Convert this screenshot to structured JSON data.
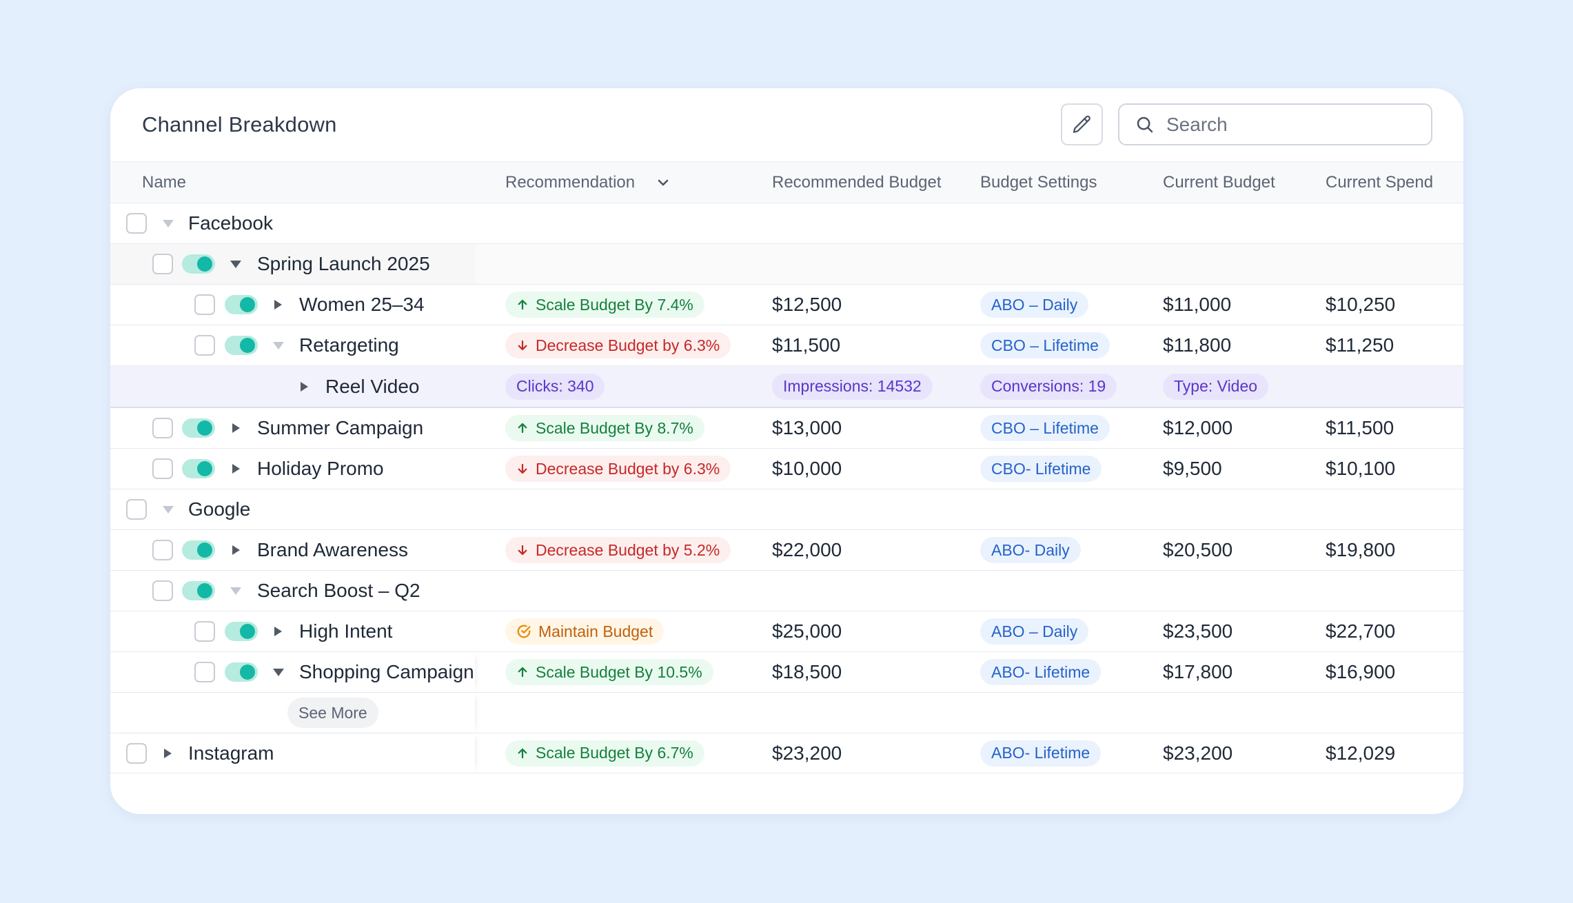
{
  "header": {
    "title": "Channel Breakdown",
    "search_placeholder": "Search"
  },
  "columns": {
    "name": "Name",
    "recommendation": "Recommendation",
    "recommended_budget": "Recommended Budget",
    "budget_settings": "Budget Settings",
    "current_budget": "Current Budget",
    "current_spend": "Current Spend"
  },
  "rows": [
    {
      "name": "Facebook"
    },
    {
      "name": "Spring Launch 2025"
    },
    {
      "name": "Women 25–34",
      "recommendation": "Scale Budget By 7.4%",
      "recommended_budget": "$12,500",
      "budget_settings": "ABO – Daily",
      "current_budget": "$11,000",
      "current_spend": "$10,250"
    },
    {
      "name": "Retargeting",
      "recommendation": "Decrease Budget by 6.3%",
      "recommended_budget": "$11,500",
      "budget_settings": "CBO – Lifetime",
      "current_budget": "$11,800",
      "current_spend": "$11,250"
    },
    {
      "name": "Reel Video",
      "clicks": "Clicks: 340",
      "impressions": "Impressions: 14532",
      "conversions": "Conversions: 19",
      "type": "Type: Video"
    },
    {
      "name": "Summer Campaign",
      "recommendation": "Scale Budget By 8.7%",
      "recommended_budget": "$13,000",
      "budget_settings": "CBO – Lifetime",
      "current_budget": "$12,000",
      "current_spend": "$11,500"
    },
    {
      "name": "Holiday Promo",
      "recommendation": "Decrease Budget by 6.3%",
      "recommended_budget": "$10,000",
      "budget_settings": "CBO- Lifetime",
      "current_budget": "$9,500",
      "current_spend": "$10,100"
    },
    {
      "name": "Google"
    },
    {
      "name": "Brand Awareness",
      "recommendation": "Decrease Budget by 5.2%",
      "recommended_budget": "$22,000",
      "budget_settings": "ABO- Daily",
      "current_budget": "$20,500",
      "current_spend": "$19,800"
    },
    {
      "name": "Search Boost – Q2"
    },
    {
      "name": "High Intent",
      "recommendation": "Maintain Budget",
      "recommended_budget": "$25,000",
      "budget_settings": "ABO – Daily",
      "current_budget": "$23,500",
      "current_spend": "$22,700"
    },
    {
      "name": "Shopping Campaign",
      "recommendation": "Scale Budget By 10.5%",
      "recommended_budget": "$18,500",
      "budget_settings": "ABO- Lifetime",
      "current_budget": "$17,800",
      "current_spend": "$16,900"
    },
    {
      "see_more": "See More"
    },
    {
      "name": "Instagram",
      "recommendation": "Scale Budget By 6.7%",
      "recommended_budget": "$23,200",
      "budget_settings": "ABO- Lifetime",
      "current_budget": "$23,200",
      "current_spend": "$12,029"
    }
  ],
  "icons": {
    "edit": "pencil-icon",
    "search": "search-icon",
    "sort": "chevron-down-icon",
    "scale": "arrow-up-icon",
    "decrease": "arrow-down-icon",
    "maintain": "check-circle-icon"
  },
  "colors": {
    "page_bg": "#e4effd",
    "toggle_on": "#14b8a6",
    "scale_text": "#15803d",
    "decrease_text": "#c62828",
    "maintain_text": "#c2600c",
    "settings_text": "#2563c9",
    "metric_text": "#5b34c9"
  }
}
